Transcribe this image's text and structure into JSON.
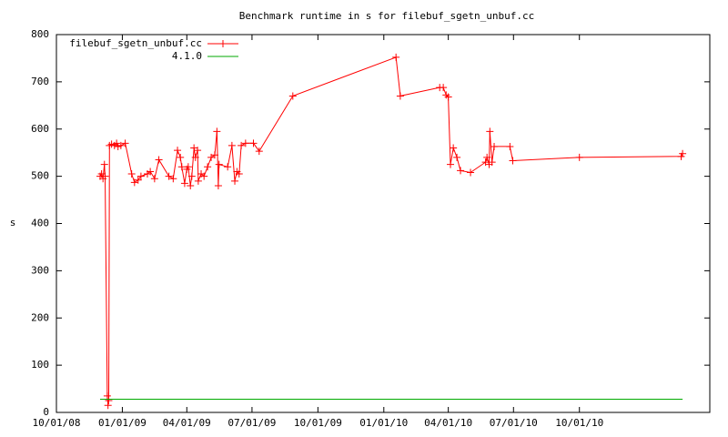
{
  "chart_data": {
    "type": "line",
    "title": "Benchmark runtime in s for filebuf_sgetn_unbuf.cc",
    "y_label": "s",
    "legend": "top-left",
    "xlim": [
      "10/01/08",
      "04/01/11"
    ],
    "xticks": [
      "10/01/08",
      "01/01/09",
      "04/01/09",
      "07/01/09",
      "10/01/09",
      "01/01/10",
      "04/01/10",
      "07/01/10",
      "10/01/10"
    ],
    "ylim": [
      0,
      800
    ],
    "yticks": [
      0,
      100,
      200,
      300,
      400,
      500,
      600,
      700,
      800
    ],
    "series": [
      {
        "name": "filebuf_sgetn_unbuf.cc",
        "color": "#ff0000",
        "markers": true,
        "x": [
          "12/01/08",
          "12/03/08",
          "12/05/08",
          "12/07/08",
          "12/08/08",
          "12/11/08",
          "12/12/08",
          "12/13/08",
          "12/14/08",
          "12/17/08",
          "12/21/08",
          "12/24/08",
          "12/26/08",
          "12/30/08",
          "01/05/09",
          "01/14/09",
          "01/18/09",
          "01/23/09",
          "01/27/09",
          "02/05/09",
          "02/09/09",
          "02/15/09",
          "02/21/09",
          "03/07/09",
          "03/13/09",
          "03/19/09",
          "03/23/09",
          "03/25/09",
          "03/29/09",
          "04/01/09",
          "04/03/09",
          "04/06/09",
          "04/08/09",
          "04/11/09",
          "04/13/09",
          "04/16/09",
          "04/17/09",
          "04/21/09",
          "04/25/09",
          "04/30/09",
          "05/05/09",
          "05/10/09",
          "05/13/09",
          "05/15/09",
          "05/16/09",
          "05/28/09",
          "06/03/09",
          "06/07/09",
          "06/10/09",
          "06/13/09",
          "06/16/09",
          "06/22/09",
          "07/03/09",
          "07/11/09",
          "08/27/09",
          "01/18/10",
          "01/24/10",
          "03/20/10",
          "03/25/10",
          "03/29/10",
          "04/01/10",
          "04/04/10",
          "04/08/10",
          "04/13/10",
          "04/18/10",
          "05/02/10",
          "05/23/10",
          "05/25/10",
          "05/28/10",
          "05/29/10",
          "06/01/10",
          "06/04/10",
          "06/26/10",
          "06/30/10",
          "10/01/10",
          "02/20/11",
          "02/22/11"
        ],
        "values": [
          500,
          505,
          495,
          525,
          500,
          35,
          15,
          25,
          565,
          568,
          565,
          570,
          563,
          565,
          570,
          505,
          487,
          492,
          500,
          505,
          510,
          495,
          535,
          500,
          495,
          555,
          540,
          520,
          485,
          515,
          520,
          480,
          500,
          560,
          540,
          555,
          490,
          505,
          500,
          520,
          540,
          545,
          595,
          480,
          525,
          520,
          565,
          490,
          510,
          505,
          565,
          570,
          570,
          553,
          670,
          752,
          670,
          688,
          688,
          672,
          668,
          525,
          560,
          540,
          512,
          508,
          530,
          540,
          525,
          595,
          530,
          563,
          563,
          533,
          540,
          542,
          548
        ]
      },
      {
        "name": "4.1.0",
        "color": "#00aa00",
        "markers": false,
        "x": [
          "12/01/08",
          "02/22/11"
        ],
        "values": [
          28,
          28
        ]
      }
    ]
  }
}
